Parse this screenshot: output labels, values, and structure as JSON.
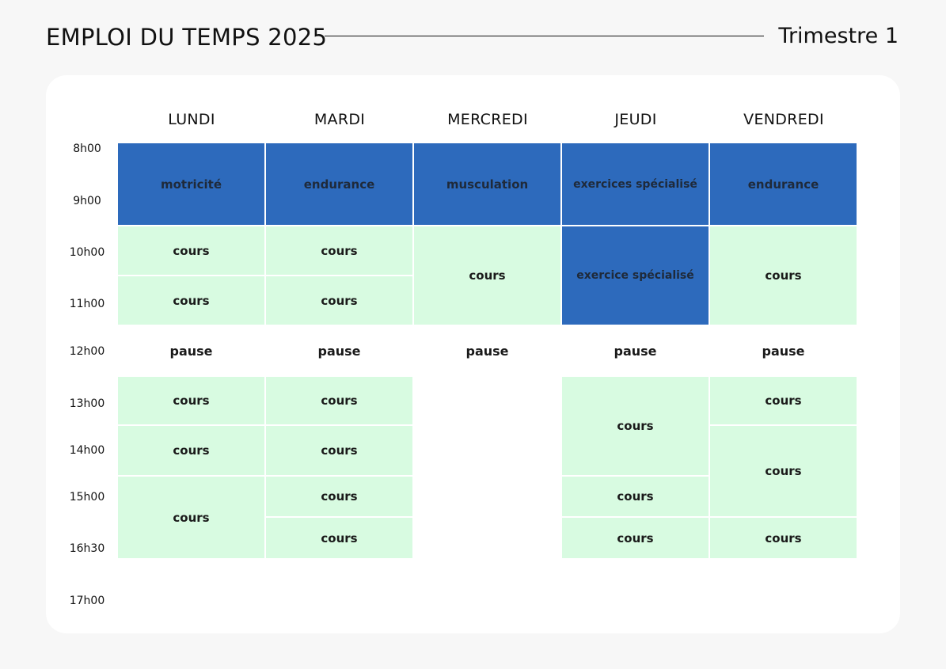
{
  "header": {
    "title": "EMPLOI DU TEMPS 2025",
    "term": "Trimestre 1"
  },
  "days": [
    "LUNDI",
    "MARDI",
    "MERCREDI",
    "JEUDI",
    "VENDREDI"
  ],
  "times": [
    "8h00",
    "9h00",
    "10h00",
    "11h00",
    "12h00",
    "13h00",
    "14h00",
    "15h00",
    "16h30",
    "17h00"
  ],
  "schedule": {
    "lundi": [
      "motricité",
      "cours",
      "cours",
      "pause",
      "cours",
      "cours",
      "cours"
    ],
    "mardi": [
      "endurance",
      "cours",
      "cours",
      "pause",
      "cours",
      "cours",
      "cours",
      "cours"
    ],
    "mercredi": [
      "musculation",
      "cours",
      "pause"
    ],
    "jeudi": [
      "exercices spécialisé",
      "exercice spécialisé",
      "pause",
      "cours",
      "cours",
      "cours"
    ],
    "vendredi": [
      "endurance",
      "cours",
      "pause",
      "cours",
      "cours",
      "cours"
    ]
  },
  "colors": {
    "sport": "#2d6abc",
    "cours": "#d8fbe1",
    "card": "#ffffff",
    "background": "#f7f7f7"
  }
}
